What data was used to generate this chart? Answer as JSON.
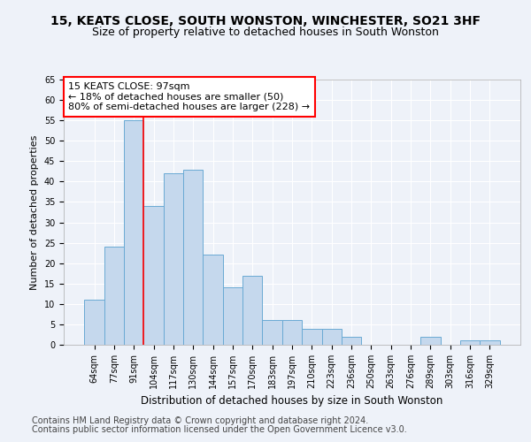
{
  "title1": "15, KEATS CLOSE, SOUTH WONSTON, WINCHESTER, SO21 3HF",
  "title2": "Size of property relative to detached houses in South Wonston",
  "xlabel": "Distribution of detached houses by size in South Wonston",
  "ylabel": "Number of detached properties",
  "categories": [
    "64sqm",
    "77sqm",
    "91sqm",
    "104sqm",
    "117sqm",
    "130sqm",
    "144sqm",
    "157sqm",
    "170sqm",
    "183sqm",
    "197sqm",
    "210sqm",
    "223sqm",
    "236sqm",
    "250sqm",
    "263sqm",
    "276sqm",
    "289sqm",
    "303sqm",
    "316sqm",
    "329sqm"
  ],
  "values": [
    11,
    24,
    55,
    34,
    42,
    43,
    22,
    14,
    17,
    6,
    6,
    4,
    4,
    2,
    0,
    0,
    0,
    2,
    0,
    1,
    1
  ],
  "bar_color": "#c5d8ed",
  "bar_edge_color": "#6aaad4",
  "property_line_x": 2.5,
  "annotation_text": "15 KEATS CLOSE: 97sqm\n← 18% of detached houses are smaller (50)\n80% of semi-detached houses are larger (228) →",
  "annotation_box_color": "white",
  "annotation_box_edge_color": "red",
  "property_line_color": "red",
  "ylim": [
    0,
    65
  ],
  "yticks": [
    0,
    5,
    10,
    15,
    20,
    25,
    30,
    35,
    40,
    45,
    50,
    55,
    60,
    65
  ],
  "footer1": "Contains HM Land Registry data © Crown copyright and database right 2024.",
  "footer2": "Contains public sector information licensed under the Open Government Licence v3.0.",
  "background_color": "#eef2f9",
  "grid_color": "white",
  "title1_fontsize": 10,
  "title2_fontsize": 9,
  "xlabel_fontsize": 8.5,
  "ylabel_fontsize": 8,
  "annotation_fontsize": 8,
  "footer_fontsize": 7,
  "tick_fontsize": 7
}
